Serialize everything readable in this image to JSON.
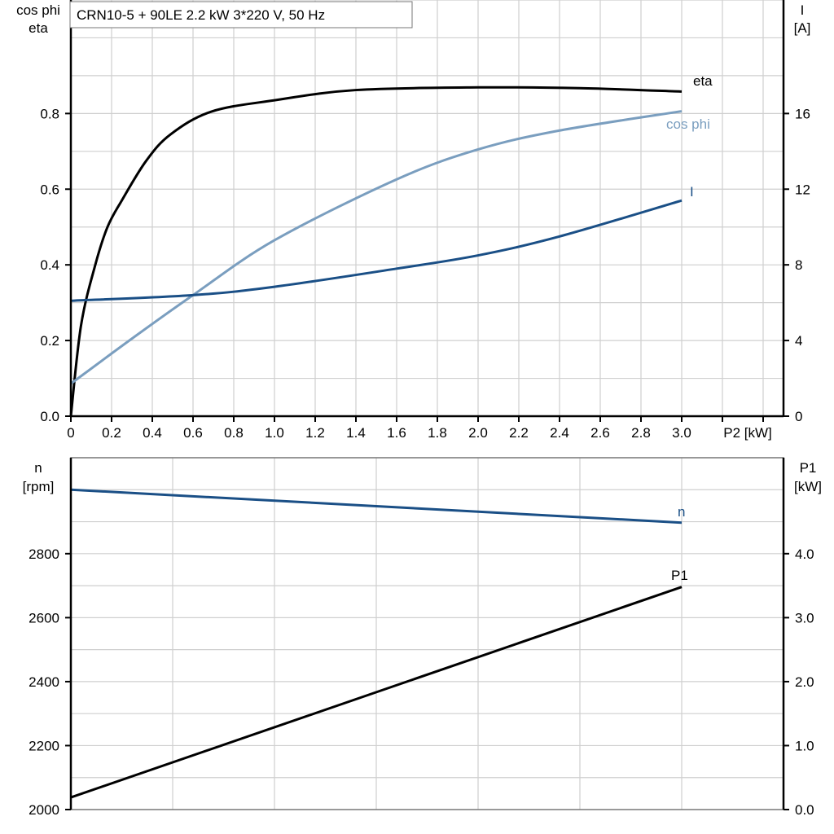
{
  "title": "CRN10-5 + 90LE   2.2 kW   3*220 V, 50 Hz",
  "chart_data": [
    {
      "type": "line",
      "xlabel": "P2 [kW]",
      "ylabel_left": [
        "cos phi",
        "eta"
      ],
      "ylabel_right": [
        "I",
        "[A]"
      ],
      "xlim": [
        0,
        3.5
      ],
      "ylim_left": [
        0,
        1.1
      ],
      "ylim_right": [
        0,
        22
      ],
      "x_ticks": [
        "0",
        "0.2",
        "0.4",
        "0.6",
        "0.8",
        "1.0",
        "1.2",
        "1.4",
        "1.6",
        "1.8",
        "2.0",
        "2.2",
        "2.4",
        "2.6",
        "2.8",
        "3.0"
      ],
      "y_ticks_left": [
        "0.0",
        "0.2",
        "0.4",
        "0.6",
        "0.8"
      ],
      "y_ticks_right": [
        "0",
        "4",
        "8",
        "12",
        "16"
      ],
      "grid": true,
      "series": [
        {
          "name": "eta",
          "axis": "left",
          "color": "#000000",
          "x": [
            0,
            0.05,
            0.12,
            0.18,
            0.25,
            0.37,
            0.49,
            0.69,
            1.0,
            1.4,
            2.0,
            2.5,
            3.0
          ],
          "y": [
            0,
            0.24,
            0.4,
            0.5,
            0.57,
            0.675,
            0.745,
            0.805,
            0.835,
            0.862,
            0.869,
            0.867,
            0.858
          ]
        },
        {
          "name": "cos phi",
          "axis": "left",
          "color": "#7a9ebf",
          "x": [
            0,
            0.3,
            0.6,
            1.0,
            1.6,
            2.0,
            2.4,
            3.0
          ],
          "y": [
            0.086,
            0.205,
            0.32,
            0.465,
            0.626,
            0.705,
            0.755,
            0.806
          ]
        },
        {
          "name": "I",
          "axis": "right",
          "color": "#1a4f86",
          "x": [
            0,
            0.6,
            1.0,
            1.6,
            2.0,
            2.4,
            3.0
          ],
          "y": [
            6.1,
            6.4,
            6.84,
            7.8,
            8.5,
            9.5,
            11.4
          ]
        }
      ]
    },
    {
      "type": "line",
      "xlim": [
        0,
        3.5
      ],
      "ylabel_left": [
        "n",
        "[rpm]"
      ],
      "ylabel_right": [
        "P1",
        "[kW]"
      ],
      "ylim_left": [
        2000,
        3100
      ],
      "ylim_right": [
        0,
        5.5
      ],
      "y_ticks_left": [
        "2000",
        "2200",
        "2400",
        "2600",
        "2800"
      ],
      "y_ticks_right": [
        "0.0",
        "1.0",
        "2.0",
        "3.0",
        "4.0"
      ],
      "grid": true,
      "series": [
        {
          "name": "n",
          "axis": "left",
          "color": "#1a4f86",
          "x": [
            0,
            3.0
          ],
          "y": [
            3000,
            2897
          ]
        },
        {
          "name": "P1",
          "axis": "right",
          "color": "#000000",
          "x": [
            0,
            3.0
          ],
          "y": [
            0.19,
            3.48
          ]
        }
      ]
    }
  ]
}
